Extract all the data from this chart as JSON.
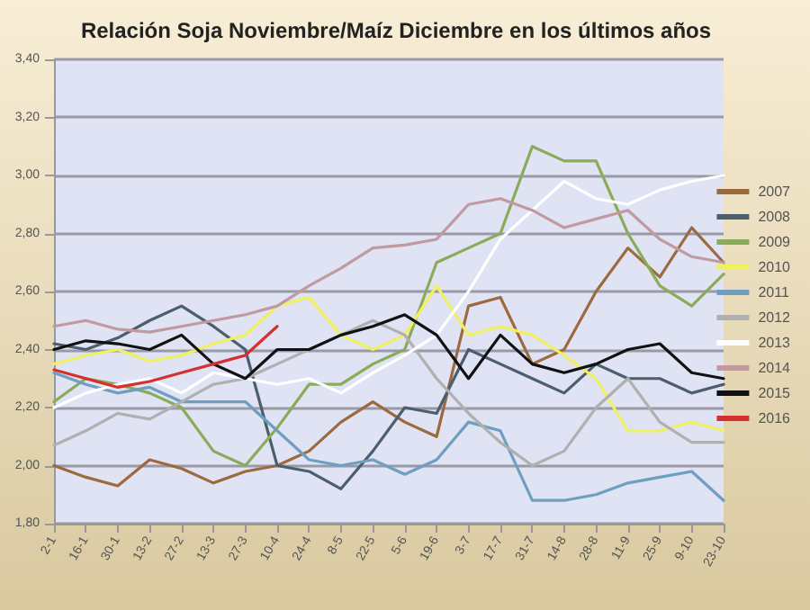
{
  "chart_data": {
    "type": "line",
    "title": "Relación Soja Noviembre/Maíz Diciembre en los últimos años",
    "categories": [
      "2-1",
      "16-1",
      "30-1",
      "13-2",
      "27-2",
      "13-3",
      "27-3",
      "10-4",
      "24-4",
      "8-5",
      "22-5",
      "5-6",
      "19-6",
      "3-7",
      "17-7",
      "31-7",
      "14-8",
      "28-8",
      "11-9",
      "25-9",
      "9-10",
      "23-10"
    ],
    "series": [
      {
        "name": "2007",
        "color": "#9c6a3e",
        "values": [
          2.0,
          1.96,
          1.93,
          2.02,
          1.99,
          1.94,
          1.98,
          2.0,
          2.05,
          2.15,
          2.22,
          2.15,
          2.1,
          2.55,
          2.58,
          2.35,
          2.4,
          2.6,
          2.75,
          2.65,
          2.82,
          2.7
        ]
      },
      {
        "name": "2008",
        "color": "#4b5e6e",
        "values": [
          2.42,
          2.4,
          2.44,
          2.5,
          2.55,
          2.48,
          2.4,
          2.0,
          1.98,
          1.92,
          2.05,
          2.2,
          2.18,
          2.4,
          2.35,
          2.3,
          2.25,
          2.35,
          2.3,
          2.3,
          2.25,
          2.28
        ]
      },
      {
        "name": "2009",
        "color": "#8aab5a",
        "values": [
          2.22,
          2.3,
          2.28,
          2.25,
          2.2,
          2.05,
          2.0,
          2.13,
          2.28,
          2.28,
          2.35,
          2.4,
          2.7,
          2.75,
          2.8,
          3.1,
          3.05,
          3.05,
          2.8,
          2.62,
          2.55,
          2.66
        ]
      },
      {
        "name": "2010",
        "color": "#f0f060",
        "values": [
          2.35,
          2.38,
          2.4,
          2.36,
          2.38,
          2.42,
          2.45,
          2.55,
          2.58,
          2.45,
          2.4,
          2.45,
          2.62,
          2.45,
          2.48,
          2.45,
          2.38,
          2.3,
          2.12,
          2.12,
          2.15,
          2.12
        ]
      },
      {
        "name": "2011",
        "color": "#6f9fc0",
        "values": [
          2.32,
          2.28,
          2.25,
          2.27,
          2.22,
          2.22,
          2.22,
          2.12,
          2.02,
          2.0,
          2.02,
          1.97,
          2.02,
          2.15,
          2.12,
          1.88,
          1.88,
          1.9,
          1.94,
          1.96,
          1.98,
          1.88
        ]
      },
      {
        "name": "2012",
        "color": "#b0b0b0",
        "values": [
          2.07,
          2.12,
          2.18,
          2.16,
          2.22,
          2.28,
          2.3,
          2.35,
          2.4,
          2.45,
          2.5,
          2.45,
          2.3,
          2.18,
          2.08,
          2.0,
          2.05,
          2.2,
          2.3,
          2.15,
          2.08,
          2.08
        ]
      },
      {
        "name": "2013",
        "color": "#ffffff",
        "values": [
          2.2,
          2.25,
          2.28,
          2.3,
          2.25,
          2.32,
          2.3,
          2.28,
          2.3,
          2.25,
          2.32,
          2.38,
          2.45,
          2.6,
          2.78,
          2.88,
          2.98,
          2.92,
          2.9,
          2.95,
          2.98,
          3.0
        ]
      },
      {
        "name": "2014",
        "color": "#c09aa0",
        "values": [
          2.48,
          2.5,
          2.47,
          2.46,
          2.48,
          2.5,
          2.52,
          2.55,
          2.62,
          2.68,
          2.75,
          2.76,
          2.78,
          2.9,
          2.92,
          2.88,
          2.82,
          2.85,
          2.88,
          2.78,
          2.72,
          2.7
        ]
      },
      {
        "name": "2015",
        "color": "#111111",
        "values": [
          2.4,
          2.43,
          2.42,
          2.4,
          2.45,
          2.35,
          2.3,
          2.4,
          2.4,
          2.45,
          2.48,
          2.52,
          2.45,
          2.3,
          2.45,
          2.35,
          2.32,
          2.35,
          2.4,
          2.42,
          2.32,
          2.3
        ]
      },
      {
        "name": "2016",
        "color": "#d43030",
        "values": [
          2.33,
          2.3,
          2.27,
          2.29,
          2.32,
          2.35,
          2.38,
          2.48,
          null,
          null,
          null,
          null,
          null,
          null,
          null,
          null,
          null,
          null,
          null,
          null,
          null,
          null
        ]
      }
    ],
    "ylim": [
      1.8,
      3.4
    ],
    "yticks": [
      {
        "value": 1.8,
        "label": "1,80"
      },
      {
        "value": 2.0,
        "label": "2,00"
      },
      {
        "value": 2.2,
        "label": "2,20"
      },
      {
        "value": 2.4,
        "label": "2,40"
      },
      {
        "value": 2.6,
        "label": "2,60"
      },
      {
        "value": 2.8,
        "label": "2,80"
      },
      {
        "value": 3.0,
        "label": "3,00"
      },
      {
        "value": 3.2,
        "label": "3,20"
      },
      {
        "value": 3.4,
        "label": "3,40"
      }
    ],
    "grid": "y",
    "legend": "right",
    "marker": "none",
    "line_style": "solid"
  }
}
